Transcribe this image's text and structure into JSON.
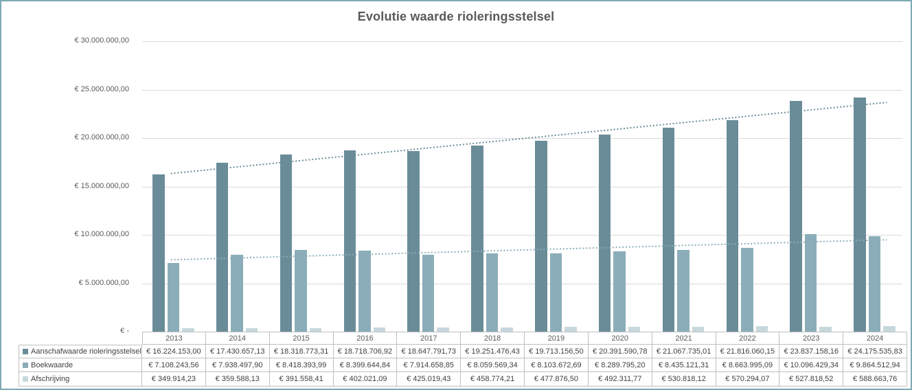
{
  "title": "Evolutie waarde rioleringsstelsel",
  "colors": {
    "frame_border": "#7caab3",
    "gridline": "#d9d9d9",
    "table_border": "#bfbfbf",
    "tick_text": "#595959",
    "table_text": "#404040",
    "title_text": "#595959",
    "background": "#ffffff"
  },
  "chart_data": {
    "type": "bar",
    "title": "Evolutie waarde rioleringsstelsel",
    "categories": [
      "2013",
      "2014",
      "2015",
      "2016",
      "2017",
      "2018",
      "2019",
      "2020",
      "2021",
      "2022",
      "2023",
      "2024"
    ],
    "series": [
      {
        "name": "Aanschafwaarde rioleringsstelsel",
        "color": "#6a8c98",
        "trendline": true,
        "values": [
          16224153.0,
          17430657.13,
          18318773.31,
          18718706.92,
          18647791.73,
          19251476.43,
          19713156.5,
          20391590.78,
          21067735.01,
          21816060.15,
          23837158.16,
          24175535.83
        ],
        "labels": [
          "€ 16.224.153,00",
          "€ 17.430.657,13",
          "€ 18.318.773,31",
          "€ 18.718.706,92",
          "€ 18.647.791,73",
          "€ 19.251.476,43",
          "€ 19.713.156,50",
          "€ 20.391.590,78",
          "€ 21.067.735,01",
          "€ 21.816.060,15",
          "€ 23.837.158,16",
          "€ 24.175.535,83"
        ]
      },
      {
        "name": "Boekwaarde",
        "color": "#8badb9",
        "trendline": true,
        "values": [
          7108243.56,
          7938497.9,
          8418393.99,
          8399644.84,
          7914658.85,
          8059569.34,
          8103672.69,
          8289795.2,
          8435121.31,
          8663995.09,
          10096429.34,
          9864512.94
        ],
        "labels": [
          "€ 7.108.243,56",
          "€ 7.938.497,90",
          "€ 8.418.393,99",
          "€ 8.399.644,84",
          "€ 7.914.658,85",
          "€ 8.059.569,34",
          "€ 8.103.672,69",
          "€ 8.289.795,20",
          "€ 8.435.121,31",
          "€ 8.663.995,09",
          "€ 10.096.429,34",
          "€ 9.864.512,94"
        ]
      },
      {
        "name": "Afschrijving",
        "color": "#c7d8dd",
        "trendline": false,
        "values": [
          349914.23,
          359588.13,
          391558.41,
          402021.09,
          425019.43,
          458774.21,
          477876.5,
          492311.77,
          530818.12,
          570294.07,
          527818.52,
          588663.76
        ],
        "labels": [
          "€ 349.914,23",
          "€ 359.588,13",
          "€ 391.558,41",
          "€ 402.021,09",
          "€ 425.019,43",
          "€ 458.774,21",
          "€ 477.876,50",
          "€ 492.311,77",
          "€ 530.818,12",
          "€ 570.294,07",
          "€ 527.818,52",
          "€ 588.663,76"
        ]
      }
    ],
    "y_ticks": [
      {
        "value": 30000000,
        "label": "€ 30.000.000,00"
      },
      {
        "value": 25000000,
        "label": "€ 25.000.000,00"
      },
      {
        "value": 20000000,
        "label": "€ 20.000.000,00"
      },
      {
        "value": 15000000,
        "label": "€ 15.000.000,00"
      },
      {
        "value": 10000000,
        "label": "€ 10.000.000,00"
      },
      {
        "value": 5000000,
        "label": "€ 5.000.000,00"
      },
      {
        "value": 0,
        "label": "€ -"
      }
    ],
    "ylim": [
      0,
      30000000
    ],
    "grid": true,
    "legend_position": "table-rows-left",
    "trend_style": "dotted"
  }
}
